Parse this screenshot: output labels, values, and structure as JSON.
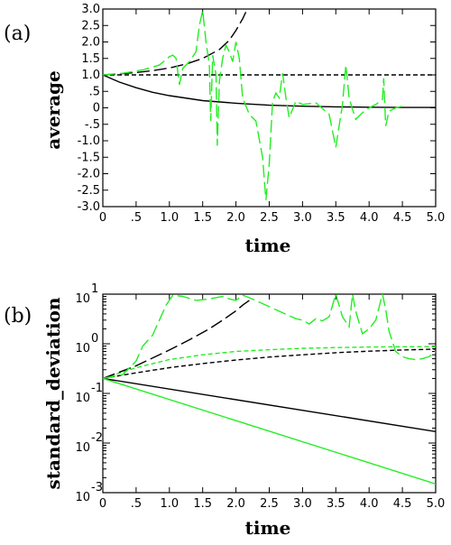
{
  "colors": {
    "black": "#000000",
    "green": "#22ee22"
  },
  "chart_data": [
    {
      "type": "line",
      "panel_label": "(a)",
      "xlabel": "time",
      "ylabel": "average",
      "xlim": [
        0,
        5.0
      ],
      "ylim": [
        -3.0,
        3.0
      ],
      "yscale": "linear",
      "x_ticks": [
        "0",
        ".5",
        "1.0",
        "1.5",
        "2.0",
        "2.5",
        "3.0",
        "3.5",
        "4.0",
        "4.5",
        "5.0"
      ],
      "y_ticks": [
        "3.0",
        "2.5",
        "2.0",
        "1.5",
        "1.0",
        ".5",
        "0",
        "-.5",
        "-1.0",
        "-1.5",
        "-2.0",
        "-2.5",
        "-3.0"
      ],
      "series": [
        {
          "style": "short-dash",
          "color": "#000000",
          "x": [
            0,
            5.0
          ],
          "y": [
            1.0,
            1.0
          ]
        },
        {
          "style": "solid",
          "color": "#000000",
          "x": [
            0,
            0.25,
            0.5,
            0.75,
            1.0,
            1.5,
            2.0,
            2.5,
            3.0,
            3.5,
            4.0,
            4.5,
            5.0
          ],
          "y": [
            1.0,
            0.78,
            0.61,
            0.47,
            0.37,
            0.22,
            0.14,
            0.08,
            0.05,
            0.03,
            0.02,
            0.01,
            0.01
          ]
        },
        {
          "style": "long-dash",
          "color": "#000000",
          "x": [
            0,
            0.25,
            0.5,
            0.75,
            1.0,
            1.25,
            1.5,
            1.75,
            1.9,
            2.0,
            2.1,
            2.17
          ],
          "y": [
            1.0,
            1.03,
            1.07,
            1.13,
            1.21,
            1.33,
            1.5,
            1.77,
            2.05,
            2.35,
            2.7,
            3.0
          ]
        },
        {
          "style": "long-dash",
          "color": "#22ee22",
          "x": [
            0,
            0.3,
            0.6,
            0.85,
            1.0,
            1.05,
            1.1,
            1.15,
            1.2,
            1.3,
            1.4,
            1.45,
            1.5,
            1.55,
            1.6,
            1.62,
            1.65,
            1.7,
            1.72,
            1.75,
            1.8,
            1.85,
            1.9,
            1.95,
            2.0,
            2.05,
            2.1,
            2.2,
            2.3,
            2.4,
            2.45,
            2.5,
            2.55,
            2.6,
            2.65,
            2.7,
            2.75,
            2.8,
            2.9,
            3.0,
            3.2,
            3.4,
            3.5,
            3.6,
            3.65,
            3.7,
            3.75,
            3.8,
            3.9,
            4.0,
            4.1,
            4.2,
            4.22,
            4.25,
            4.3,
            4.4,
            4.5
          ],
          "y": [
            1.0,
            1.05,
            1.15,
            1.3,
            1.55,
            1.6,
            1.5,
            0.7,
            1.2,
            1.4,
            1.7,
            2.5,
            2.95,
            2.0,
            1.3,
            -0.4,
            1.6,
            1.0,
            -1.15,
            0.8,
            1.5,
            1.9,
            1.7,
            1.4,
            2.0,
            1.5,
            0.3,
            -0.2,
            -0.4,
            -1.5,
            -2.8,
            -1.7,
            0.2,
            0.45,
            0.3,
            1.05,
            0.3,
            -0.3,
            0.2,
            0.1,
            0.15,
            -0.2,
            -1.2,
            0.1,
            1.3,
            0.3,
            -0.05,
            -0.35,
            -0.15,
            0.0,
            0.1,
            0.25,
            0.9,
            -0.55,
            -0.1,
            0.0,
            0.05
          ]
        }
      ]
    },
    {
      "type": "line",
      "panel_label": "(b)",
      "xlabel": "time",
      "ylabel": "standard_deviation",
      "xlim": [
        0,
        5.0
      ],
      "ylim": [
        0.001,
        10
      ],
      "yscale": "log",
      "x_ticks": [
        "0",
        ".5",
        "1.0",
        "1.5",
        "2.0",
        "2.5",
        "3.0",
        "3.5",
        "4.0",
        "4.5",
        "5.0"
      ],
      "y_ticks": [
        {
          "base": "10",
          "exp": "1",
          "value": 10
        },
        {
          "base": "10",
          "exp": "0",
          "value": 1
        },
        {
          "base": "10",
          "exp": "-1",
          "value": 0.1
        },
        {
          "base": "10",
          "exp": "-2",
          "value": 0.01
        },
        {
          "base": "10",
          "exp": "-3",
          "value": 0.001
        }
      ],
      "series": [
        {
          "style": "solid",
          "color": "#000000",
          "x": [
            0,
            5.0
          ],
          "y": [
            0.2,
            0.017
          ]
        },
        {
          "style": "solid",
          "color": "#22ee22",
          "x": [
            0,
            5.0
          ],
          "y": [
            0.2,
            0.0015
          ]
        },
        {
          "style": "short-dash",
          "color": "#000000",
          "x": [
            0,
            0.5,
            1.0,
            1.5,
            2.0,
            2.5,
            3.0,
            3.5,
            4.0,
            4.5,
            5.0
          ],
          "y": [
            0.2,
            0.26,
            0.33,
            0.4,
            0.47,
            0.54,
            0.6,
            0.66,
            0.71,
            0.75,
            0.78
          ]
        },
        {
          "style": "short-dash",
          "color": "#22ee22",
          "x": [
            0,
            0.5,
            1.0,
            1.5,
            2.0,
            2.5,
            3.0,
            3.5,
            4.0,
            4.5,
            5.0
          ],
          "y": [
            0.2,
            0.33,
            0.48,
            0.6,
            0.7,
            0.76,
            0.81,
            0.84,
            0.86,
            0.87,
            0.88
          ]
        },
        {
          "style": "long-dash",
          "color": "#000000",
          "x": [
            0,
            0.5,
            1.0,
            1.3,
            1.6,
            1.8,
            2.0,
            2.1,
            2.2
          ],
          "y": [
            0.2,
            0.36,
            0.75,
            1.2,
            2.0,
            3.0,
            4.6,
            6.0,
            7.5
          ]
        },
        {
          "style": "long-dash",
          "color": "#22ee22",
          "x": [
            0,
            0.3,
            0.5,
            0.6,
            0.75,
            0.85,
            0.95,
            1.05,
            1.2,
            1.4,
            1.6,
            1.8,
            1.9,
            2.0,
            2.1,
            2.2,
            2.9,
            3.0,
            3.1,
            3.2,
            3.3,
            3.4,
            3.5,
            3.6,
            3.7,
            3.75,
            3.8,
            3.9,
            4.0,
            4.1,
            4.2,
            4.25,
            4.3,
            4.4,
            4.5,
            4.6,
            4.7,
            4.8,
            4.9,
            5.0
          ],
          "y": [
            0.2,
            0.24,
            0.45,
            0.9,
            1.5,
            3.0,
            6.0,
            9.5,
            9.0,
            7.5,
            8.0,
            9.0,
            8.0,
            7.5,
            9.5,
            8.5,
            3.2,
            3.0,
            2.5,
            3.2,
            2.9,
            3.5,
            10,
            3.5,
            2.2,
            10,
            4.5,
            1.6,
            2.0,
            3.0,
            10,
            5.0,
            1.8,
            0.7,
            0.55,
            0.5,
            0.48,
            0.5,
            0.55,
            0.7
          ]
        }
      ]
    }
  ]
}
